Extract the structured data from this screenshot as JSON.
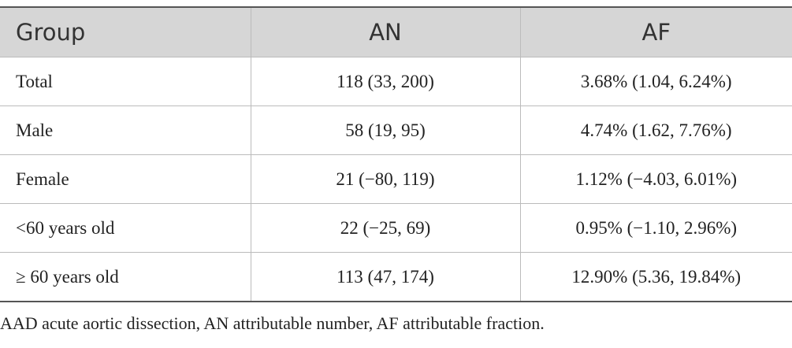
{
  "table": {
    "header": [
      "Group",
      "AN",
      "AF"
    ],
    "rows": [
      [
        "Total",
        "118 (33, 200)",
        "3.68% (1.04, 6.24%)"
      ],
      [
        "Male",
        "58 (19, 95)",
        "4.74% (1.62, 7.76%)"
      ],
      [
        "Female",
        "21 (−80, 119)",
        "1.12% (−4.03, 6.01%)"
      ],
      [
        "<60 years old",
        "22 (−25, 69)",
        "0.95% (−1.10, 2.96%)"
      ],
      [
        "≥ 60 years old",
        "113 (47, 174)",
        "12.90% (5.36, 19.84%)"
      ]
    ]
  },
  "footnote": "AAD acute aortic dissection, AN attributable number, AF attributable fraction."
}
